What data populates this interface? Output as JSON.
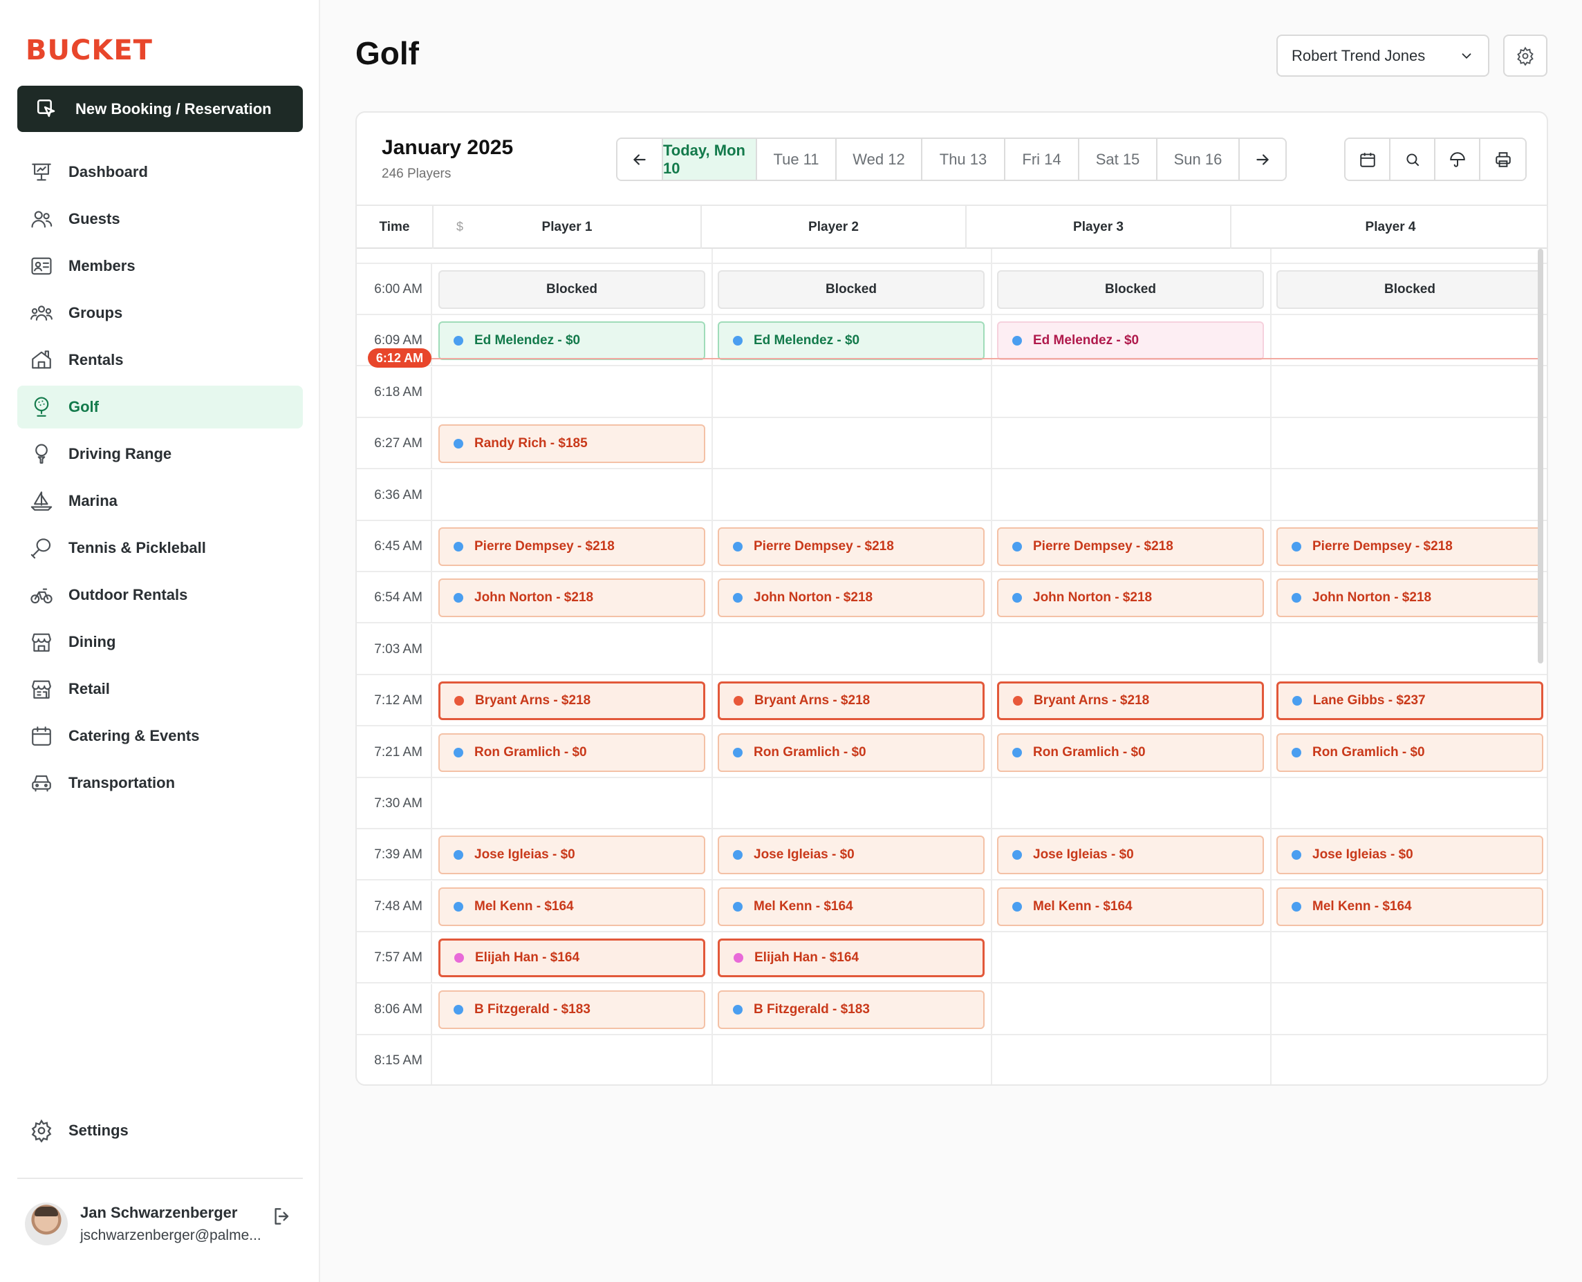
{
  "app": {
    "logo": "BUCKET"
  },
  "sidebar": {
    "new_booking": "New Booking / Reservation",
    "items": [
      {
        "label": "Dashboard",
        "icon": "presentation-icon"
      },
      {
        "label": "Guests",
        "icon": "users-icon"
      },
      {
        "label": "Members",
        "icon": "member-card-icon"
      },
      {
        "label": "Groups",
        "icon": "group-icon"
      },
      {
        "label": "Rentals",
        "icon": "house-icon"
      },
      {
        "label": "Golf",
        "icon": "golf-ball-icon",
        "active": true
      },
      {
        "label": "Driving Range",
        "icon": "golf-tee-icon"
      },
      {
        "label": "Marina",
        "icon": "sailboat-icon"
      },
      {
        "label": "Tennis & Pickleball",
        "icon": "racket-icon"
      },
      {
        "label": "Outdoor Rentals",
        "icon": "bicycle-icon"
      },
      {
        "label": "Dining",
        "icon": "storefront-icon"
      },
      {
        "label": "Retail",
        "icon": "store-icon"
      },
      {
        "label": "Catering & Events",
        "icon": "calendar-icon"
      },
      {
        "label": "Transportation",
        "icon": "car-icon"
      }
    ],
    "settings": "Settings",
    "user": {
      "name": "Jan Schwarzenberger",
      "email": "jschwarzenberger@palme..."
    }
  },
  "header": {
    "title": "Golf",
    "course": "Robert Trend Jones"
  },
  "calendar": {
    "month": "January 2025",
    "players": "246 Players",
    "days": [
      "Today, Mon 10",
      "Tue 11",
      "Wed 12",
      "Thu 13",
      "Fri 14",
      "Sat 15",
      "Sun 16"
    ],
    "columns": {
      "time": "Time",
      "dollar": "$",
      "players": [
        "Player 1",
        "Player 2",
        "Player 3",
        "Player 4"
      ]
    },
    "now": "6:12 AM",
    "rows": [
      {
        "time": "6:00 AM",
        "slots": [
          {
            "text": "Blocked",
            "style": "blocked"
          },
          {
            "text": "Blocked",
            "style": "blocked"
          },
          {
            "text": "Blocked",
            "style": "blocked"
          },
          {
            "text": "Blocked",
            "style": "blocked"
          }
        ]
      },
      {
        "time": "6:09 AM",
        "slots": [
          {
            "text": "Ed Melendez - $0",
            "style": "green",
            "dot": "#4a9ef0"
          },
          {
            "text": "Ed Melendez - $0",
            "style": "green",
            "dot": "#4a9ef0"
          },
          {
            "text": "Ed Melendez - $0",
            "style": "pink",
            "dot": "#4a9ef0"
          },
          null
        ]
      },
      {
        "time": "6:18 AM",
        "slots": [
          null,
          null,
          null,
          null
        ]
      },
      {
        "time": "6:27 AM",
        "slots": [
          {
            "text": "Randy Rich - $185",
            "style": "orange",
            "dot": "#4a9ef0"
          },
          null,
          null,
          null
        ]
      },
      {
        "time": "6:36 AM",
        "slots": [
          null,
          null,
          null,
          null
        ]
      },
      {
        "time": "6:45 AM",
        "slots": [
          {
            "text": "Pierre Dempsey - $218",
            "style": "orange",
            "dot": "#4a9ef0"
          },
          {
            "text": "Pierre Dempsey - $218",
            "style": "orange",
            "dot": "#4a9ef0"
          },
          {
            "text": "Pierre Dempsey - $218",
            "style": "orange",
            "dot": "#4a9ef0"
          },
          {
            "text": "Pierre Dempsey - $218",
            "style": "orange",
            "dot": "#4a9ef0"
          }
        ]
      },
      {
        "time": "6:54 AM",
        "slots": [
          {
            "text": "John Norton - $218",
            "style": "orange",
            "dot": "#4a9ef0"
          },
          {
            "text": "John Norton - $218",
            "style": "orange",
            "dot": "#4a9ef0"
          },
          {
            "text": "John Norton - $218",
            "style": "orange",
            "dot": "#4a9ef0"
          },
          {
            "text": "John Norton - $218",
            "style": "orange",
            "dot": "#4a9ef0"
          }
        ]
      },
      {
        "time": "7:03 AM",
        "slots": [
          null,
          null,
          null,
          null
        ]
      },
      {
        "time": "7:12 AM",
        "slots": [
          {
            "text": "Bryant Arns - $218",
            "style": "orange strong",
            "dot": "#e8583a"
          },
          {
            "text": "Bryant Arns - $218",
            "style": "orange strong",
            "dot": "#e8583a"
          },
          {
            "text": "Bryant Arns - $218",
            "style": "orange strong",
            "dot": "#e8583a"
          },
          {
            "text": "Lane Gibbs - $237",
            "style": "orange strong",
            "dot": "#4a9ef0"
          }
        ]
      },
      {
        "time": "7:21 AM",
        "slots": [
          {
            "text": "Ron Gramlich - $0",
            "style": "orange",
            "dot": "#4a9ef0"
          },
          {
            "text": "Ron Gramlich - $0",
            "style": "orange",
            "dot": "#4a9ef0"
          },
          {
            "text": "Ron Gramlich - $0",
            "style": "orange",
            "dot": "#4a9ef0"
          },
          {
            "text": "Ron Gramlich - $0",
            "style": "orange",
            "dot": "#4a9ef0"
          }
        ]
      },
      {
        "time": "7:30 AM",
        "slots": [
          null,
          null,
          null,
          null
        ]
      },
      {
        "time": "7:39 AM",
        "slots": [
          {
            "text": "Jose Igleias - $0",
            "style": "orange",
            "dot": "#4a9ef0"
          },
          {
            "text": "Jose Igleias - $0",
            "style": "orange",
            "dot": "#4a9ef0"
          },
          {
            "text": "Jose Igleias - $0",
            "style": "orange",
            "dot": "#4a9ef0"
          },
          {
            "text": "Jose Igleias - $0",
            "style": "orange",
            "dot": "#4a9ef0"
          }
        ]
      },
      {
        "time": "7:48 AM",
        "slots": [
          {
            "text": "Mel Kenn - $164",
            "style": "orange",
            "dot": "#4a9ef0"
          },
          {
            "text": "Mel Kenn - $164",
            "style": "orange",
            "dot": "#4a9ef0"
          },
          {
            "text": "Mel Kenn - $164",
            "style": "orange",
            "dot": "#4a9ef0"
          },
          {
            "text": "Mel Kenn - $164",
            "style": "orange",
            "dot": "#4a9ef0"
          }
        ]
      },
      {
        "time": "7:57 AM",
        "slots": [
          {
            "text": "Elijah Han - $164",
            "style": "orange strong",
            "dot": "#e86ad8"
          },
          {
            "text": "Elijah Han - $164",
            "style": "orange strong",
            "dot": "#e86ad8"
          },
          null,
          null
        ]
      },
      {
        "time": "8:06 AM",
        "slots": [
          {
            "text": "B Fitzgerald - $183",
            "style": "orange",
            "dot": "#4a9ef0"
          },
          {
            "text": "B Fitzgerald - $183",
            "style": "orange",
            "dot": "#4a9ef0"
          },
          null,
          null
        ]
      },
      {
        "time": "8:15 AM",
        "slots": [
          null,
          null,
          null,
          null
        ]
      }
    ]
  }
}
